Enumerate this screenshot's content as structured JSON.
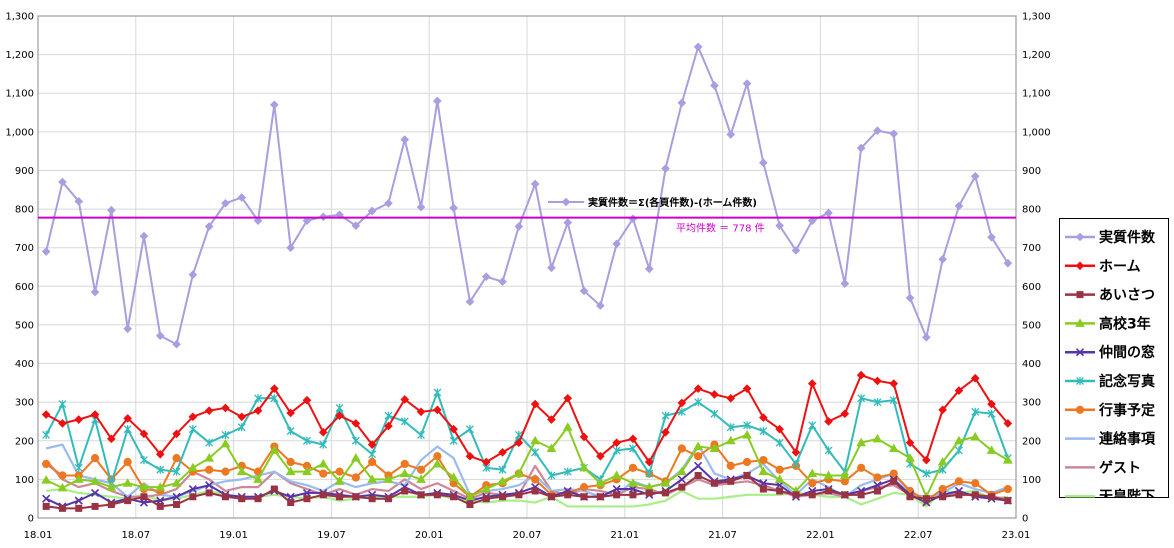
{
  "chart_data": {
    "type": "line",
    "x_tick_labels": [
      "18.01",
      "18.07",
      "19.01",
      "19.07",
      "20.01",
      "20.07",
      "21.01",
      "21.07",
      "22.01",
      "22.07",
      "23.01"
    ],
    "y_tick_labels": [
      "0",
      "100",
      "200",
      "300",
      "400",
      "500",
      "600",
      "700",
      "800",
      "900",
      "1,000",
      "1,100",
      "1,200",
      "1,300"
    ],
    "ylim": [
      0,
      1300
    ],
    "grid": true,
    "legend_placement": "right",
    "average_line": {
      "value": 778,
      "label": "平均件数 ＝ 778 件",
      "color": "#cc00cc"
    },
    "annotation": "実質件数＝Σ(各頁件数)-(ホーム件数)",
    "series": [
      {
        "name": "実質件数",
        "color": "#a89ee0",
        "marker": "diamond",
        "values": [
          690,
          870,
          820,
          585,
          797,
          490,
          730,
          472,
          450,
          630,
          755,
          815,
          830,
          770,
          1070,
          700,
          770,
          780,
          785,
          757,
          795,
          815,
          980,
          805,
          1080,
          803,
          560,
          625,
          612,
          755,
          865,
          648,
          765,
          588,
          550,
          710,
          775,
          645,
          905,
          1075,
          1220,
          1120,
          993,
          1125,
          920,
          757,
          693,
          770,
          790,
          607,
          958,
          1003,
          995,
          570,
          468,
          670,
          808,
          885,
          727,
          660
        ]
      },
      {
        "name": "ホーム",
        "color": "#ee1111",
        "marker": "diamond",
        "values": [
          268,
          245,
          255,
          268,
          205,
          258,
          218,
          165,
          218,
          262,
          278,
          285,
          262,
          278,
          335,
          272,
          305,
          222,
          265,
          245,
          190,
          238,
          307,
          275,
          280,
          230,
          160,
          145,
          170,
          195,
          295,
          255,
          310,
          210,
          160,
          195,
          205,
          145,
          222,
          298,
          335,
          320,
          310,
          335,
          260,
          230,
          170,
          348,
          250,
          270,
          370,
          355,
          348,
          195,
          150,
          280,
          330,
          362,
          295,
          245
        ]
      },
      {
        "name": "あいさつ",
        "color": "#993344",
        "marker": "square",
        "values": [
          30,
          25,
          25,
          30,
          35,
          45,
          55,
          30,
          35,
          55,
          65,
          55,
          50,
          50,
          75,
          40,
          50,
          60,
          55,
          55,
          50,
          50,
          70,
          60,
          60,
          55,
          35,
          50,
          55,
          60,
          70,
          55,
          60,
          55,
          55,
          60,
          60,
          65,
          65,
          80,
          110,
          90,
          95,
          110,
          75,
          70,
          60,
          60,
          70,
          60,
          60,
          70,
          95,
          55,
          50,
          55,
          60,
          60,
          55,
          45
        ]
      },
      {
        "name": "高校3年",
        "color": "#88cc22",
        "marker": "triangle",
        "values": [
          98,
          78,
          100,
          95,
          80,
          90,
          80,
          80,
          90,
          130,
          155,
          192,
          120,
          100,
          175,
          120,
          120,
          140,
          95,
          155,
          100,
          100,
          115,
          100,
          140,
          105,
          55,
          75,
          95,
          115,
          200,
          180,
          235,
          130,
          90,
          110,
          90,
          80,
          90,
          120,
          185,
          180,
          200,
          215,
          120,
          100,
          70,
          115,
          110,
          110,
          195,
          205,
          180,
          155,
          55,
          145,
          200,
          210,
          175,
          150
        ]
      },
      {
        "name": "仲間の窓",
        "color": "#5533aa",
        "marker": "x",
        "values": [
          50,
          30,
          45,
          65,
          40,
          50,
          40,
          45,
          55,
          75,
          85,
          60,
          55,
          55,
          70,
          55,
          65,
          65,
          60,
          55,
          60,
          55,
          80,
          60,
          65,
          60,
          45,
          55,
          60,
          65,
          80,
          55,
          70,
          55,
          55,
          75,
          75,
          60,
          70,
          100,
          135,
          95,
          100,
          110,
          90,
          85,
          55,
          70,
          75,
          60,
          70,
          85,
          100,
          60,
          40,
          60,
          70,
          55,
          50,
          45
        ]
      },
      {
        "name": "記念写真",
        "color": "#33bbbb",
        "marker": "asterisk",
        "values": [
          215,
          295,
          130,
          255,
          90,
          230,
          150,
          125,
          120,
          230,
          195,
          215,
          235,
          310,
          310,
          225,
          200,
          190,
          285,
          200,
          165,
          265,
          250,
          215,
          325,
          200,
          230,
          130,
          125,
          215,
          170,
          110,
          120,
          130,
          100,
          175,
          180,
          115,
          265,
          275,
          300,
          270,
          235,
          240,
          225,
          195,
          140,
          240,
          175,
          120,
          310,
          300,
          305,
          140,
          115,
          125,
          175,
          275,
          270,
          155
        ]
      },
      {
        "name": "行事予定",
        "color": "#ee7722",
        "marker": "circle",
        "values": [
          140,
          110,
          110,
          155,
          100,
          145,
          75,
          70,
          155,
          120,
          125,
          120,
          135,
          120,
          185,
          145,
          135,
          115,
          120,
          105,
          145,
          110,
          140,
          125,
          160,
          90,
          55,
          85,
          90,
          115,
          100,
          60,
          65,
          80,
          85,
          100,
          130,
          115,
          95,
          180,
          160,
          190,
          135,
          145,
          150,
          125,
          135,
          90,
          100,
          95,
          130,
          105,
          115,
          70,
          45,
          75,
          95,
          90,
          60,
          75
        ]
      },
      {
        "name": "連絡事項",
        "color": "#99bbee",
        "marker": "none",
        "values": [
          180,
          190,
          110,
          100,
          90,
          55,
          90,
          60,
          55,
          70,
          85,
          95,
          100,
          110,
          120,
          95,
          85,
          70,
          95,
          80,
          90,
          95,
          85,
          150,
          185,
          155,
          60,
          70,
          75,
          85,
          110,
          70,
          75,
          70,
          55,
          60,
          95,
          80,
          90,
          125,
          190,
          115,
          100,
          115,
          140,
          95,
          60,
          100,
          80,
          55,
          85,
          100,
          115,
          65,
          50,
          65,
          90,
          75,
          65,
          80
        ]
      },
      {
        "name": "ゲスト",
        "color": "#cc8899",
        "marker": "none",
        "values": [
          150,
          100,
          80,
          90,
          70,
          55,
          55,
          60,
          75,
          120,
          100,
          70,
          80,
          80,
          120,
          90,
          75,
          60,
          75,
          60,
          75,
          70,
          100,
          75,
          90,
          70,
          50,
          65,
          60,
          60,
          135,
          70,
          60,
          75,
          70,
          60,
          80,
          75,
          60,
          80,
          100,
          85,
          90,
          95,
          85,
          70,
          55,
          60,
          65,
          55,
          70,
          80,
          85,
          60,
          55,
          60,
          65,
          60,
          55,
          50
        ]
      },
      {
        "name": "天皇陛下",
        "color": "#aaee88",
        "marker": "none",
        "values": [
          70,
          75,
          65,
          60,
          55,
          50,
          60,
          45,
          50,
          60,
          70,
          60,
          55,
          55,
          60,
          55,
          50,
          55,
          45,
          50,
          55,
          55,
          55,
          55,
          60,
          50,
          45,
          40,
          45,
          45,
          40,
          55,
          30,
          30,
          30,
          30,
          30,
          35,
          45,
          70,
          50,
          50,
          55,
          60,
          60,
          60,
          65,
          60,
          55,
          55,
          35,
          50,
          65,
          60,
          30,
          70,
          65,
          70,
          50,
          55
        ]
      }
    ]
  }
}
